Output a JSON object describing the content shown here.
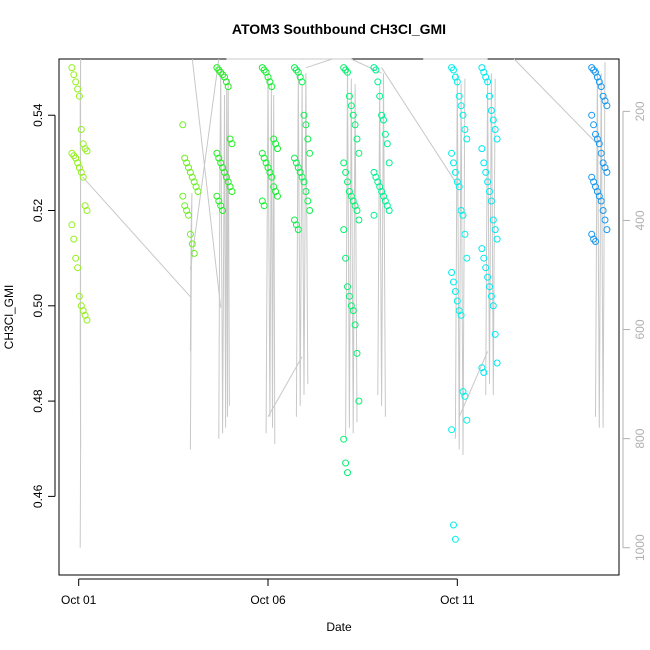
{
  "chart_data": {
    "type": "scatter",
    "title": "ATOM3 Southbound CH3Cl_GMI",
    "xlabel": "Date",
    "ylabel": "CH3Cl_GMI",
    "x_ticks": [
      "Oct 01",
      "Oct 06",
      "Oct 11"
    ],
    "x_tick_days": [
      1,
      6,
      11
    ],
    "xlim_days": [
      0.48,
      15.27
    ],
    "ylim": [
      0.4435,
      0.5518
    ],
    "y_ticks": [
      0.46,
      0.48,
      0.5,
      0.52,
      0.54
    ],
    "y_tick_labels": [
      "0.46",
      "0.48",
      "0.50",
      "0.52",
      "0.54"
    ],
    "right_axis": {
      "ticks": [
        200,
        400,
        600,
        800,
        1000
      ],
      "tick_labels": [
        "200",
        "400",
        "600",
        "800",
        "1000"
      ],
      "range": [
        104,
        1050
      ],
      "inverted": true,
      "color": "#b0b0b0"
    },
    "pressure_line_color": "#c8c8c8",
    "point_color_gradient": [
      "#7fff00",
      "#00ff80",
      "#00ffff",
      "#0080ff"
    ],
    "series": [
      {
        "day": 1.02,
        "color": "#94f01e",
        "points": [
          0.55,
          0.5485,
          0.547,
          0.5455,
          0.544,
          0.537,
          0.534,
          0.533,
          0.5325,
          0.532,
          0.5315,
          0.531,
          0.53,
          0.529,
          0.528,
          0.527,
          0.521,
          0.52,
          0.517,
          0.514,
          0.51,
          0.508,
          0.502,
          0.5,
          0.499,
          0.498,
          0.497
        ],
        "alt": [
          [
            0.02,
            1000
          ],
          [
            0.03,
            820
          ],
          [
            0.02,
            600
          ],
          [
            0.03,
            400
          ],
          [
            0.02,
            200
          ],
          [
            0.03,
            104
          ]
        ]
      },
      {
        "day": 3.95,
        "color": "#6cf020",
        "points": [
          0.538,
          0.531,
          0.53,
          0.529,
          0.528,
          0.527,
          0.526,
          0.525,
          0.524,
          0.523,
          0.521,
          0.52,
          0.519,
          0.515,
          0.513,
          0.511
        ],
        "alt": [
          [
            0.0,
            820
          ],
          [
            0.02,
            560
          ],
          [
            0.04,
            350
          ],
          [
            0.02,
            420
          ],
          [
            0.0,
            640
          ]
        ]
      },
      {
        "day": 4.85,
        "color": "#22f020",
        "points": [
          0.55,
          0.5495,
          0.549,
          0.5485,
          0.548,
          0.547,
          0.546,
          0.535,
          0.534,
          0.532,
          0.531,
          0.53,
          0.529,
          0.528,
          0.527,
          0.526,
          0.525,
          0.524,
          0.523,
          0.522,
          0.521,
          0.52
        ],
        "alt": [
          [
            -0.15,
            800
          ],
          [
            -0.12,
            300
          ],
          [
            -0.1,
            120
          ],
          [
            -0.05,
            790
          ],
          [
            0.0,
            170
          ],
          [
            0.03,
            780
          ],
          [
            0.06,
            160
          ],
          [
            0.08,
            760
          ],
          [
            0.1,
            140
          ],
          [
            0.13,
            740
          ]
        ]
      },
      {
        "day": 6.05,
        "color": "#18f032",
        "points": [
          0.55,
          0.5495,
          0.549,
          0.548,
          0.547,
          0.546,
          0.535,
          0.534,
          0.533,
          0.532,
          0.531,
          0.53,
          0.529,
          0.528,
          0.527,
          0.525,
          0.524,
          0.523,
          0.522,
          0.521
        ],
        "alt": [
          [
            -0.1,
            790
          ],
          [
            -0.05,
            130
          ],
          [
            0.0,
            760
          ],
          [
            0.04,
            150
          ],
          [
            0.07,
            780
          ],
          [
            0.1,
            170
          ],
          [
            0.13,
            810
          ]
        ]
      },
      {
        "day": 6.9,
        "color": "#10f050",
        "points": [
          0.55,
          0.5495,
          0.549,
          0.548,
          0.547,
          0.54,
          0.538,
          0.535,
          0.532,
          0.531,
          0.53,
          0.529,
          0.528,
          0.527,
          0.526,
          0.524,
          0.522,
          0.52,
          0.518,
          0.517,
          0.516
        ],
        "alt": [
          [
            -0.15,
            760
          ],
          [
            -0.1,
            130
          ],
          [
            -0.05,
            740
          ],
          [
            0.0,
            150
          ],
          [
            0.05,
            720
          ],
          [
            0.1,
            130
          ],
          [
            0.15,
            700
          ]
        ]
      },
      {
        "day": 8.2,
        "color": "#08f070",
        "points": [
          0.55,
          0.5495,
          0.549,
          0.544,
          0.542,
          0.54,
          0.538,
          0.535,
          0.532,
          0.53,
          0.528,
          0.526,
          0.524,
          0.523,
          0.522,
          0.521,
          0.52,
          0.518,
          0.516,
          0.51,
          0.504,
          0.502,
          0.5,
          0.499,
          0.496,
          0.49,
          0.48,
          0.472,
          0.467,
          0.465
        ],
        "alt": [
          [
            -0.15,
            800
          ],
          [
            -0.1,
            120
          ],
          [
            -0.05,
            780
          ],
          [
            0.0,
            140
          ],
          [
            0.05,
            790
          ],
          [
            0.1,
            150
          ],
          [
            0.15,
            770
          ]
        ]
      },
      {
        "day": 9.0,
        "color": "#00f090",
        "points": [
          0.55,
          0.5495,
          0.547,
          0.544,
          0.54,
          0.539,
          0.536,
          0.534,
          0.53,
          0.528,
          0.527,
          0.526,
          0.525,
          0.524,
          0.523,
          0.522,
          0.521,
          0.52,
          0.519
        ],
        "alt": [
          [
            -0.1,
            720
          ],
          [
            -0.05,
            150
          ],
          [
            0.0,
            740
          ],
          [
            0.05,
            130
          ],
          [
            0.1,
            760
          ]
        ]
      },
      {
        "day": 11.05,
        "color": "#00f0e8",
        "points": [
          0.55,
          0.5495,
          0.548,
          0.547,
          0.544,
          0.542,
          0.54,
          0.537,
          0.535,
          0.532,
          0.53,
          0.528,
          0.526,
          0.525,
          0.52,
          0.519,
          0.515,
          0.51,
          0.507,
          0.505,
          0.503,
          0.501,
          0.499,
          0.498,
          0.482,
          0.481,
          0.476,
          0.474,
          0.454,
          0.451
        ],
        "alt": [
          [
            -0.1,
            800
          ],
          [
            -0.05,
            130
          ],
          [
            0.0,
            820
          ],
          [
            0.05,
            150
          ],
          [
            0.1,
            830
          ],
          [
            0.15,
            140
          ]
        ]
      },
      {
        "day": 11.85,
        "color": "#00e8f0",
        "points": [
          0.55,
          0.549,
          0.548,
          0.547,
          0.544,
          0.541,
          0.539,
          0.537,
          0.535,
          0.533,
          0.53,
          0.528,
          0.526,
          0.524,
          0.522,
          0.518,
          0.516,
          0.514,
          0.512,
          0.51,
          0.508,
          0.506,
          0.504,
          0.502,
          0.5,
          0.494,
          0.488,
          0.487,
          0.486
        ],
        "alt": [
          [
            -0.1,
            720
          ],
          [
            -0.05,
            140
          ],
          [
            0.0,
            700
          ],
          [
            0.05,
            130
          ],
          [
            0.1,
            720
          ],
          [
            0.15,
            140
          ]
        ]
      },
      {
        "day": 14.75,
        "color": "#1898f0",
        "points": [
          0.55,
          0.5495,
          0.549,
          0.548,
          0.547,
          0.546,
          0.544,
          0.543,
          0.542,
          0.54,
          0.538,
          0.536,
          0.535,
          0.534,
          0.532,
          0.53,
          0.529,
          0.528,
          0.527,
          0.526,
          0.525,
          0.524,
          0.523,
          0.522,
          0.52,
          0.518,
          0.516,
          0.515,
          0.514,
          0.5135
        ],
        "alt": [
          [
            -0.1,
            760
          ],
          [
            -0.05,
            120
          ],
          [
            0.0,
            780
          ],
          [
            0.05,
            130
          ],
          [
            0.1,
            780
          ],
          [
            0.15,
            110
          ]
        ]
      }
    ],
    "connectors": [
      [
        [
          1.05,
          820
        ],
        [
          1.05,
          104
        ]
      ],
      [
        [
          1.1,
          320
        ],
        [
          3.95,
          540
        ]
      ],
      [
        [
          3.95,
          490
        ],
        [
          4.7,
          104
        ]
      ],
      [
        [
          4.0,
          104
        ],
        [
          4.75,
          560
        ]
      ],
      [
        [
          4.9,
          104
        ],
        [
          6.0,
          104
        ]
      ],
      [
        [
          6.0,
          760
        ],
        [
          6.9,
          650
        ]
      ],
      [
        [
          6.0,
          104
        ],
        [
          6.9,
          104
        ]
      ],
      [
        [
          6.9,
          104
        ],
        [
          8.2,
          104
        ]
      ],
      [
        [
          7.0,
          120
        ],
        [
          7.7,
          104
        ]
      ],
      [
        [
          8.2,
          104
        ],
        [
          9.0,
          130
        ]
      ],
      [
        [
          9.0,
          120
        ],
        [
          11.05,
          340
        ]
      ],
      [
        [
          10.1,
          104
        ],
        [
          11.8,
          104
        ]
      ],
      [
        [
          11.05,
          760
        ],
        [
          11.8,
          640
        ]
      ],
      [
        [
          12.5,
          104
        ],
        [
          14.7,
          260
        ]
      ]
    ]
  }
}
